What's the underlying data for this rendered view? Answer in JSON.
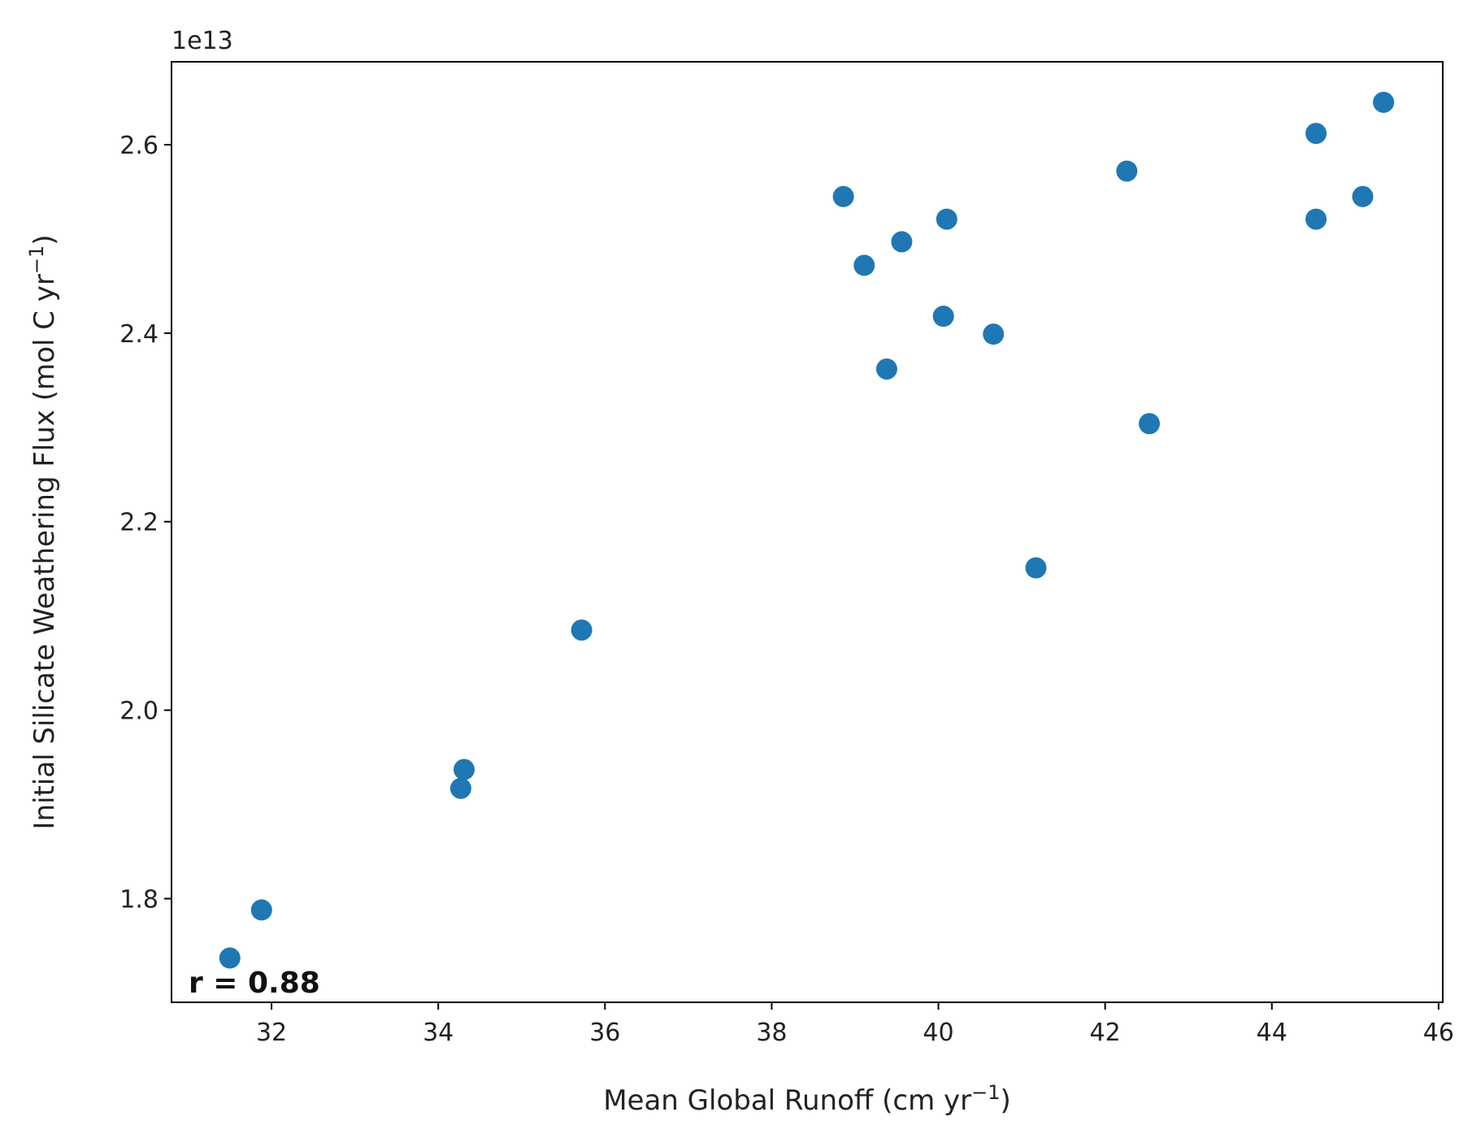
{
  "chart_data": {
    "type": "scatter",
    "xlabel": "Mean Global Runoff (cm yr",
    "xlabel_sup": "−1",
    "xlabel_close": ")",
    "ylabel": "Initial Silicate Weathering Flux (mol C yr",
    "ylabel_sup": "−1",
    "ylabel_close": ")",
    "y_offset_text": "1e13",
    "annotation": "r = 0.88",
    "xlim": [
      30.8,
      46.05
    ],
    "ylim": [
      1.69,
      2.688
    ],
    "x_ticks": [
      32,
      34,
      36,
      38,
      40,
      42,
      44,
      46
    ],
    "x_tick_labels": [
      "32",
      "34",
      "36",
      "38",
      "40",
      "42",
      "44",
      "46"
    ],
    "y_ticks": [
      1.8,
      2.0,
      2.2,
      2.4,
      2.6
    ],
    "y_tick_labels": [
      "1.8",
      "2.0",
      "2.2",
      "2.4",
      "2.6"
    ],
    "grid": false,
    "marker_color": "#1f77b4",
    "points": [
      {
        "x": 31.5,
        "y": 1.737
      },
      {
        "x": 31.88,
        "y": 1.788
      },
      {
        "x": 34.27,
        "y": 1.917
      },
      {
        "x": 34.31,
        "y": 1.937
      },
      {
        "x": 35.72,
        "y": 2.085
      },
      {
        "x": 38.86,
        "y": 2.545
      },
      {
        "x": 39.11,
        "y": 2.472
      },
      {
        "x": 39.38,
        "y": 2.362
      },
      {
        "x": 39.56,
        "y": 2.497
      },
      {
        "x": 40.06,
        "y": 2.418
      },
      {
        "x": 40.1,
        "y": 2.521
      },
      {
        "x": 40.66,
        "y": 2.399
      },
      {
        "x": 41.17,
        "y": 2.151
      },
      {
        "x": 42.26,
        "y": 2.572
      },
      {
        "x": 42.53,
        "y": 2.304
      },
      {
        "x": 44.53,
        "y": 2.521
      },
      {
        "x": 44.53,
        "y": 2.612
      },
      {
        "x": 45.09,
        "y": 2.545
      },
      {
        "x": 45.34,
        "y": 2.645
      }
    ]
  }
}
